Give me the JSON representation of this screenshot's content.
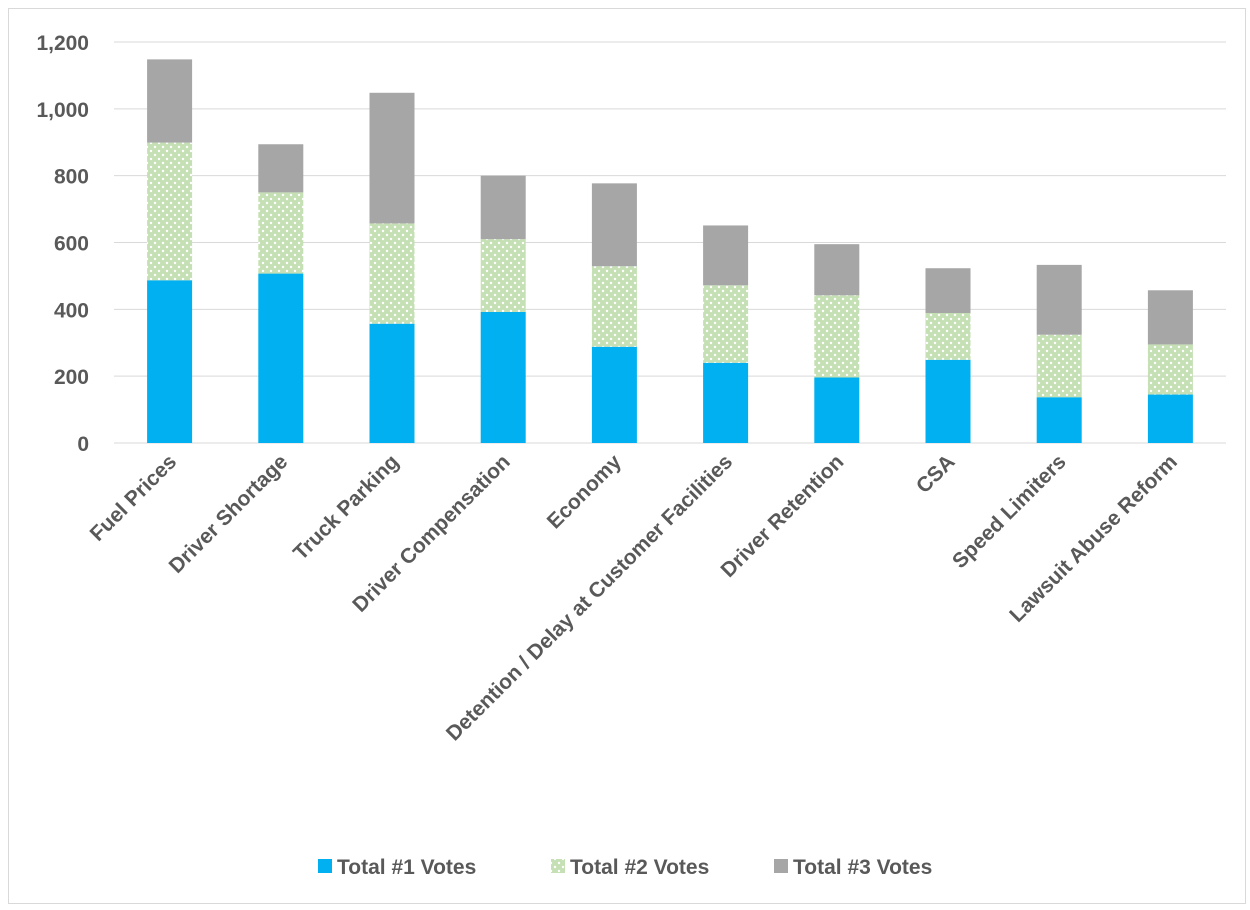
{
  "chart_data": {
    "type": "bar",
    "stacked": true,
    "title": "",
    "xlabel": "",
    "ylabel": "",
    "ylim": [
      0,
      1200
    ],
    "yticks": [
      0,
      200,
      400,
      600,
      800,
      1000,
      1200
    ],
    "ytick_labels": [
      "0",
      "200",
      "400",
      "600",
      "800",
      "1,000",
      "1,200"
    ],
    "grid": true,
    "legend_position": "bottom",
    "categories": [
      "Fuel Prices",
      "Driver Shortage",
      "Truck Parking",
      "Driver Compensation",
      "Economy",
      "Detention / Delay at Customer Facilities",
      "Driver Retention",
      "CSA",
      "Speed Limiters",
      "Lawsuit Abuse Reform"
    ],
    "series": [
      {
        "name": "Total #1 Votes",
        "color": "#00b0f0",
        "pattern": "solid",
        "values": [
          487,
          507,
          357,
          392,
          288,
          240,
          196,
          249,
          137,
          145
        ]
      },
      {
        "name": "Total #2 Votes",
        "color": "#c5e0b4",
        "pattern": "dotted",
        "values": [
          412,
          243,
          300,
          218,
          241,
          232,
          246,
          140,
          187,
          150
        ]
      },
      {
        "name": "Total #3 Votes",
        "color": "#a6a6a6",
        "pattern": "solid",
        "values": [
          249,
          144,
          391,
          190,
          248,
          179,
          153,
          134,
          209,
          162
        ]
      }
    ]
  }
}
